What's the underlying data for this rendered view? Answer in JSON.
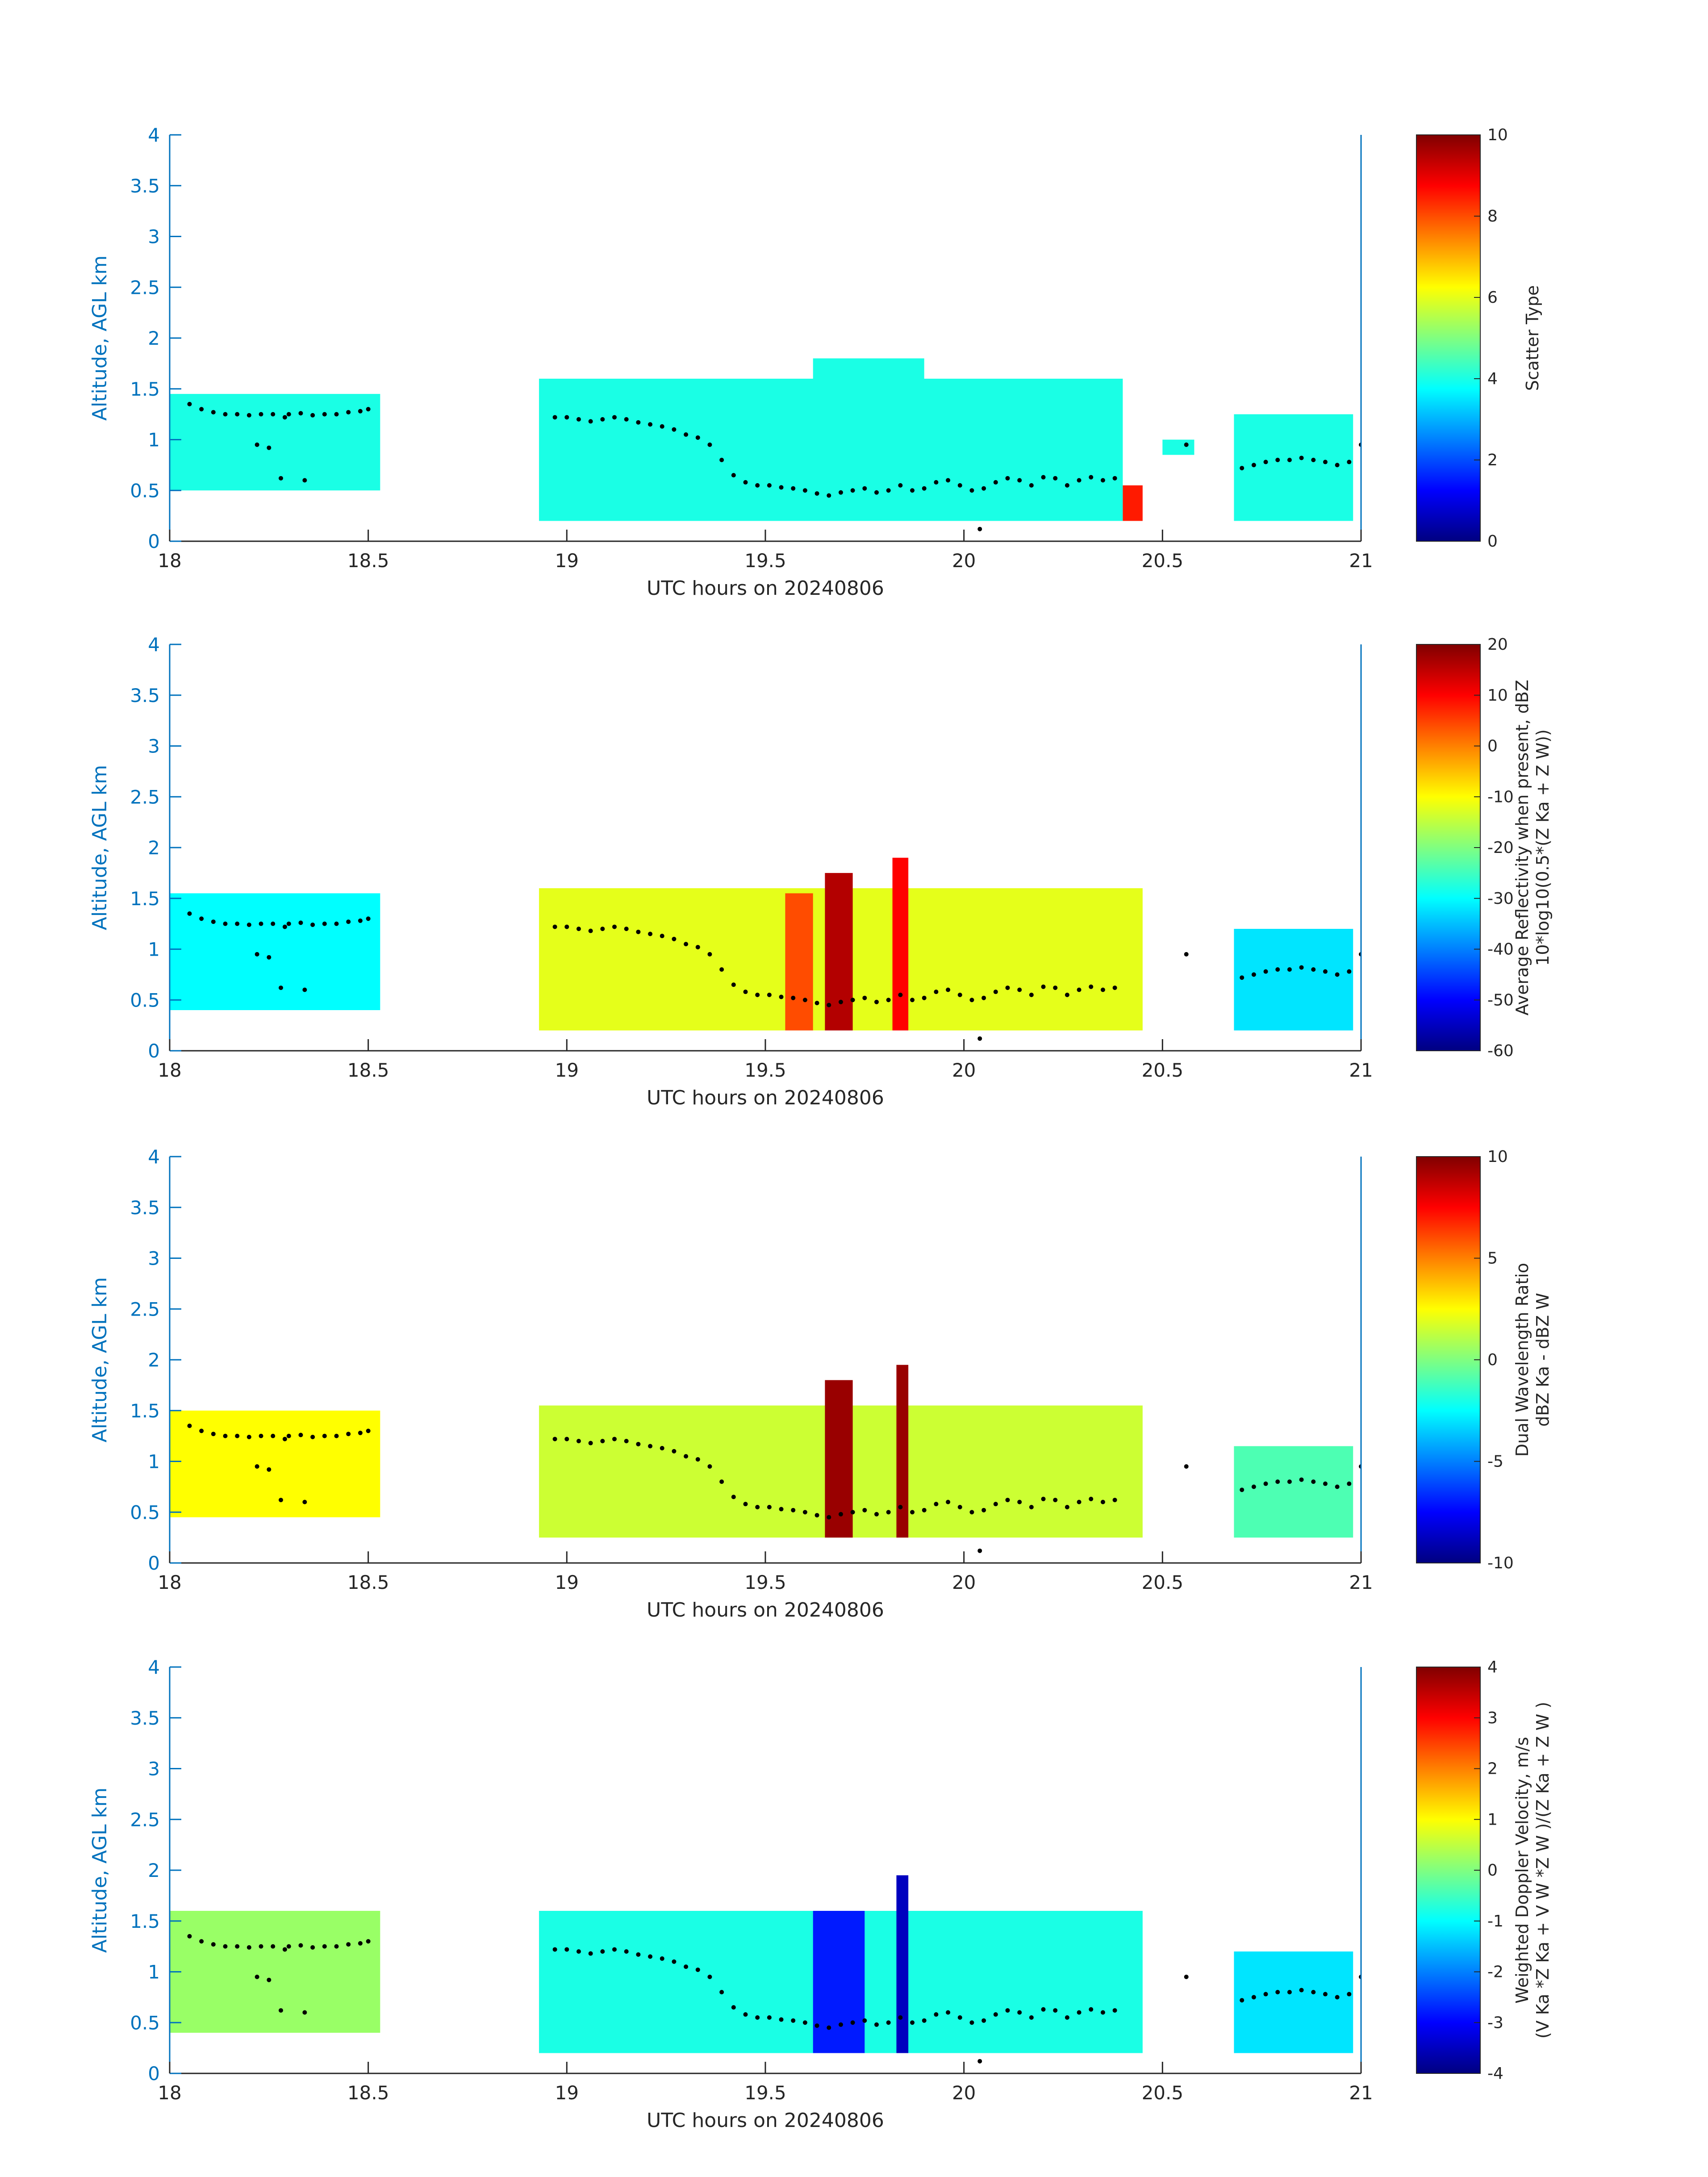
{
  "figure": {
    "background": "#ffffff",
    "axis_color": "#0072BD",
    "tick_label_color": "#262626",
    "colormap": "jet"
  },
  "chart_data": [
    {
      "type": "heatmap",
      "title": "",
      "xlabel": "UTC hours on 20240806",
      "ylabel": "Altitude, AGL km",
      "xlim": [
        18,
        21
      ],
      "ylim": [
        0,
        4
      ],
      "xticks": [
        "18",
        "18.5",
        "19",
        "19.5",
        "20",
        "20.5",
        "21"
      ],
      "yticks": [
        "0",
        "0.5",
        "1",
        "1.5",
        "2",
        "2.5",
        "3",
        "3.5",
        "4"
      ],
      "colorbar": {
        "label_lines": [
          "Scatter Type"
        ],
        "range": [
          0,
          10
        ],
        "ticks": [
          "0",
          "2",
          "4",
          "6",
          "8",
          "10"
        ]
      },
      "echo_regions": [
        {
          "x": [
            18.0,
            18.53
          ],
          "base": 0.5,
          "top": 1.45,
          "value": 4
        },
        {
          "x": [
            18.93,
            20.4
          ],
          "base": 0.2,
          "top": 1.6,
          "value": 4
        },
        {
          "x": [
            19.62,
            19.9
          ],
          "base": 0.2,
          "top": 1.8,
          "value": 4
        },
        {
          "x": [
            20.4,
            20.45
          ],
          "base": 0.2,
          "top": 0.55,
          "value": 8.5
        },
        {
          "x": [
            20.5,
            20.58
          ],
          "base": 0.85,
          "top": 1.0,
          "value": 4
        },
        {
          "x": [
            20.68,
            20.98
          ],
          "base": 0.2,
          "top": 1.25,
          "value": 4
        }
      ]
    },
    {
      "type": "heatmap",
      "title": "",
      "xlabel": "UTC hours on 20240806",
      "ylabel": "Altitude, AGL km",
      "xlim": [
        18,
        21
      ],
      "ylim": [
        0,
        4
      ],
      "xticks": [
        "18",
        "18.5",
        "19",
        "19.5",
        "20",
        "20.5",
        "21"
      ],
      "yticks": [
        "0",
        "0.5",
        "1",
        "1.5",
        "2",
        "2.5",
        "3",
        "3.5",
        "4"
      ],
      "colorbar": {
        "label_lines": [
          "Average Reflectivity when present, dBZ",
          "10*log10(0.5*(Z Ka + Z W))"
        ],
        "range": [
          -60,
          20
        ],
        "ticks": [
          "-60",
          "-50",
          "-40",
          "-30",
          "-20",
          "-10",
          "0",
          "10",
          "20"
        ]
      },
      "echo_regions": [
        {
          "x": [
            18.0,
            18.53
          ],
          "base": 0.4,
          "top": 1.55,
          "value": -30
        },
        {
          "x": [
            18.93,
            20.45
          ],
          "base": 0.2,
          "top": 1.6,
          "value": -12
        },
        {
          "x": [
            19.55,
            19.62
          ],
          "base": 0.2,
          "top": 1.55,
          "value": 4
        },
        {
          "x": [
            19.65,
            19.72
          ],
          "base": 0.2,
          "top": 1.75,
          "value": 16
        },
        {
          "x": [
            19.82,
            19.86
          ],
          "base": 0.2,
          "top": 1.9,
          "value": 10
        },
        {
          "x": [
            20.68,
            20.98
          ],
          "base": 0.2,
          "top": 1.2,
          "value": -32
        }
      ]
    },
    {
      "type": "heatmap",
      "title": "",
      "xlabel": "UTC hours on 20240806",
      "ylabel": "Altitude, AGL km",
      "xlim": [
        18,
        21
      ],
      "ylim": [
        0,
        4
      ],
      "xticks": [
        "18",
        "18.5",
        "19",
        "19.5",
        "20",
        "20.5",
        "21"
      ],
      "yticks": [
        "0",
        "0.5",
        "1",
        "1.5",
        "2",
        "2.5",
        "3",
        "3.5",
        "4"
      ],
      "colorbar": {
        "label_lines": [
          "Dual Wavelength Ratio",
          "dBZ Ka - dBZ W"
        ],
        "range": [
          -10,
          10
        ],
        "ticks": [
          "-10",
          "-5",
          "0",
          "5",
          "10"
        ]
      },
      "echo_regions": [
        {
          "x": [
            18.0,
            18.53
          ],
          "base": 0.45,
          "top": 1.5,
          "value": 2.5
        },
        {
          "x": [
            18.93,
            20.45
          ],
          "base": 0.25,
          "top": 1.55,
          "value": 1.5
        },
        {
          "x": [
            19.65,
            19.72
          ],
          "base": 0.25,
          "top": 1.8,
          "value": 9.5
        },
        {
          "x": [
            19.83,
            19.86
          ],
          "base": 0.25,
          "top": 1.95,
          "value": 9.5
        },
        {
          "x": [
            20.68,
            20.98
          ],
          "base": 0.25,
          "top": 1.15,
          "value": -1
        }
      ]
    },
    {
      "type": "heatmap",
      "title": "",
      "xlabel": "UTC hours on 20240806",
      "ylabel": "Altitude, AGL km",
      "xlim": [
        18,
        21
      ],
      "ylim": [
        0,
        4
      ],
      "xticks": [
        "18",
        "18.5",
        "19",
        "19.5",
        "20",
        "20.5",
        "21"
      ],
      "yticks": [
        "0",
        "0.5",
        "1",
        "1.5",
        "2",
        "2.5",
        "3",
        "3.5",
        "4"
      ],
      "colorbar": {
        "label_lines": [
          "Weighted Doppler Velocity, m/s",
          "(V Ka *Z Ka + V W *Z W )/(Z Ka + Z W )"
        ],
        "range": [
          -4,
          4
        ],
        "ticks": [
          "-4",
          "-3",
          "-2",
          "-1",
          "0",
          "1",
          "2",
          "3",
          "4"
        ]
      },
      "echo_regions": [
        {
          "x": [
            18.0,
            18.53
          ],
          "base": 0.4,
          "top": 1.6,
          "value": 0.2
        },
        {
          "x": [
            18.93,
            20.45
          ],
          "base": 0.2,
          "top": 1.6,
          "value": -0.8
        },
        {
          "x": [
            19.62,
            19.75
          ],
          "base": 0.2,
          "top": 1.6,
          "value": -2.8
        },
        {
          "x": [
            19.83,
            19.86
          ],
          "base": 0.2,
          "top": 1.95,
          "value": -3.5
        },
        {
          "x": [
            20.68,
            20.98
          ],
          "base": 0.2,
          "top": 1.2,
          "value": -1.2
        }
      ]
    }
  ],
  "overlay_points": {
    "color": "#000000",
    "x": [
      18.05,
      18.08,
      18.11,
      18.14,
      18.17,
      18.2,
      18.23,
      18.26,
      18.29,
      18.3,
      18.33,
      18.36,
      18.39,
      18.42,
      18.45,
      18.48,
      18.5,
      18.22,
      18.25,
      18.28,
      18.34,
      18.97,
      19.0,
      19.03,
      19.06,
      19.09,
      19.12,
      19.15,
      19.18,
      19.21,
      19.24,
      19.27,
      19.3,
      19.33,
      19.36,
      19.39,
      19.42,
      19.45,
      19.48,
      19.51,
      19.54,
      19.57,
      19.6,
      19.63,
      19.66,
      19.69,
      19.72,
      19.75,
      19.78,
      19.81,
      19.84,
      19.87,
      19.9,
      19.93,
      19.96,
      19.99,
      20.02,
      20.05,
      20.08,
      20.11,
      20.14,
      20.17,
      20.2,
      20.23,
      20.26,
      20.29,
      20.32,
      20.35,
      20.38,
      20.04,
      20.56,
      20.7,
      20.73,
      20.76,
      20.79,
      20.82,
      20.85,
      20.88,
      20.91,
      20.94,
      20.97,
      21.0
    ],
    "y": [
      1.35,
      1.3,
      1.27,
      1.25,
      1.25,
      1.24,
      1.25,
      1.25,
      1.22,
      1.25,
      1.26,
      1.24,
      1.25,
      1.25,
      1.27,
      1.28,
      1.3,
      0.95,
      0.92,
      0.62,
      0.6,
      1.22,
      1.22,
      1.2,
      1.18,
      1.2,
      1.22,
      1.2,
      1.17,
      1.15,
      1.13,
      1.1,
      1.05,
      1.02,
      0.95,
      0.8,
      0.65,
      0.58,
      0.55,
      0.55,
      0.53,
      0.52,
      0.5,
      0.47,
      0.45,
      0.48,
      0.5,
      0.52,
      0.48,
      0.5,
      0.55,
      0.5,
      0.52,
      0.58,
      0.6,
      0.55,
      0.5,
      0.52,
      0.58,
      0.62,
      0.6,
      0.55,
      0.63,
      0.62,
      0.55,
      0.6,
      0.63,
      0.6,
      0.62,
      0.12,
      0.95,
      0.72,
      0.75,
      0.78,
      0.8,
      0.8,
      0.82,
      0.8,
      0.78,
      0.75,
      0.78,
      0.95
    ]
  }
}
